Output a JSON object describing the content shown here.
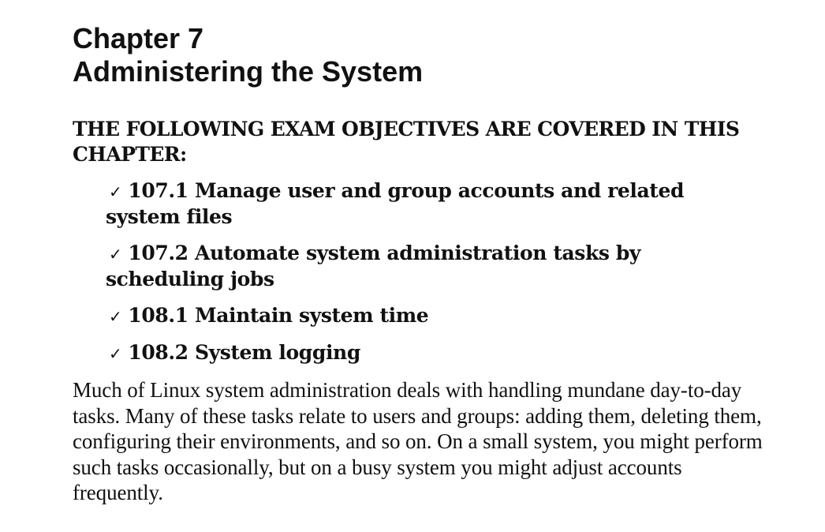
{
  "chapter": {
    "number": "Chapter 7",
    "title": "Administering the System"
  },
  "objectives": {
    "heading": "THE FOLLOWING EXAM OBJECTIVES ARE COVERED IN THIS CHAPTER:",
    "check_glyph": "✓",
    "items": [
      {
        "text": "107.1 Manage user and group accounts and related system files"
      },
      {
        "text": "107.2 Automate system administration tasks by scheduling jobs"
      },
      {
        "text": "108.1 Maintain system time"
      },
      {
        "text": "108.2 System logging"
      }
    ]
  },
  "body": {
    "paragraph": "Much of Linux system administration deals with handling mundane day-to-day tasks. Many of these tasks relate to users and groups: adding them, deleting them, configuring their environments, and so on. On a small system, you might perform such tasks occasionally, but on a busy system you might adjust accounts frequently."
  }
}
